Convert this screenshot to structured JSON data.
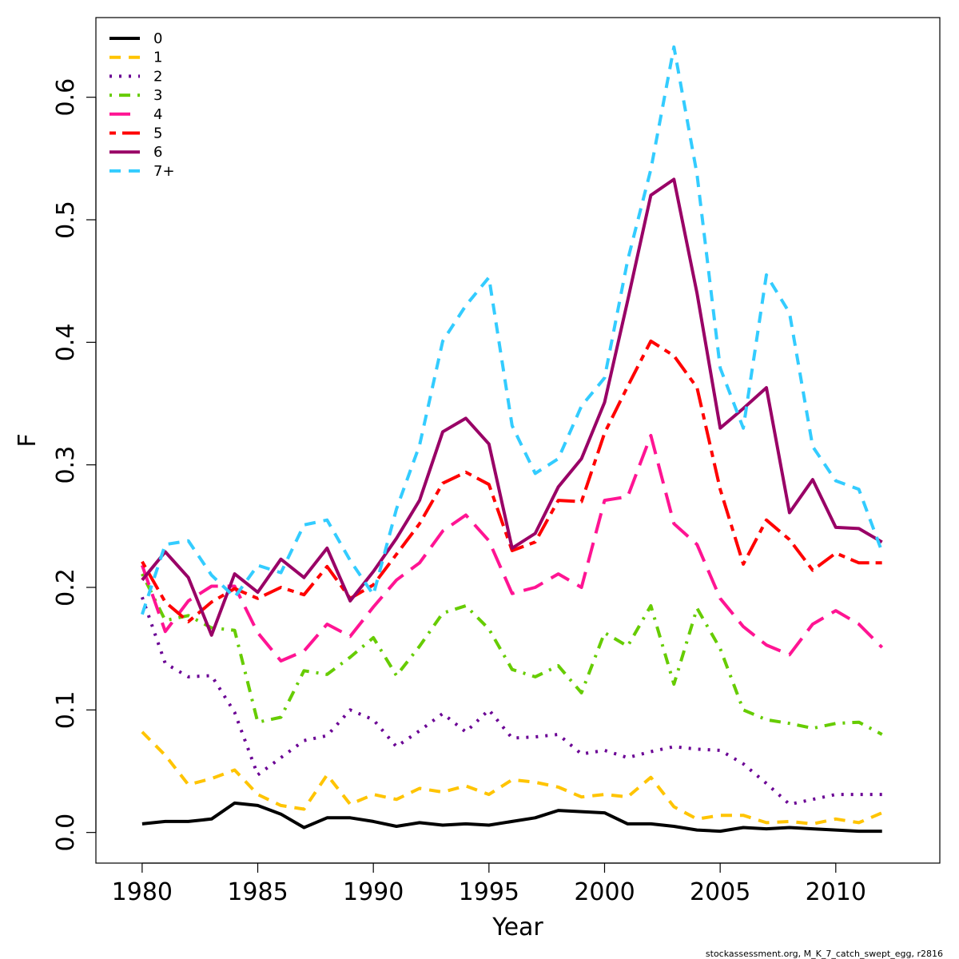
{
  "footnote": "stockassessment.org, M_K_7_catch_swept_egg, r2816",
  "chart_data": {
    "type": "line",
    "title": "",
    "xlabel": "Year",
    "ylabel": "F",
    "xlim": [
      1978,
      2014.5
    ],
    "ylim": [
      -0.025,
      0.665
    ],
    "xticks": [
      1980,
      1985,
      1990,
      1995,
      2000,
      2005,
      2010
    ],
    "yticks": [
      0.0,
      0.1,
      0.2,
      0.3,
      0.4,
      0.5,
      0.6
    ],
    "ytick_labels": [
      "0.0",
      "0.1",
      "0.2",
      "0.3",
      "0.4",
      "0.5",
      "0.6"
    ],
    "legend_position": "top-left",
    "grid": false,
    "x": [
      1980,
      1981,
      1982,
      1983,
      1984,
      1985,
      1986,
      1987,
      1988,
      1989,
      1990,
      1991,
      1992,
      1993,
      1994,
      1995,
      1996,
      1997,
      1998,
      1999,
      2000,
      2001,
      2002,
      2003,
      2004,
      2005,
      2006,
      2007,
      2008,
      2009,
      2010,
      2011,
      2012
    ],
    "series": [
      {
        "name": "0",
        "color": "#000000",
        "dash": "solid",
        "values": [
          0.007,
          0.009,
          0.009,
          0.011,
          0.024,
          0.022,
          0.015,
          0.004,
          0.012,
          0.012,
          0.009,
          0.005,
          0.008,
          0.006,
          0.007,
          0.006,
          0.009,
          0.012,
          0.018,
          0.017,
          0.016,
          0.007,
          0.007,
          0.005,
          0.002,
          0.001,
          0.004,
          0.003,
          0.004,
          0.003,
          0.002,
          0.001,
          0.001
        ]
      },
      {
        "name": "1",
        "color": "#ffc400",
        "dash": "dashed",
        "values": [
          0.082,
          0.063,
          0.039,
          0.044,
          0.051,
          0.031,
          0.022,
          0.019,
          0.047,
          0.023,
          0.031,
          0.027,
          0.036,
          0.033,
          0.038,
          0.031,
          0.043,
          0.041,
          0.037,
          0.029,
          0.031,
          0.029,
          0.045,
          0.021,
          0.011,
          0.014,
          0.014,
          0.008,
          0.009,
          0.007,
          0.011,
          0.008,
          0.016
        ]
      },
      {
        "name": "2",
        "color": "#6a0094",
        "dash": "dotted",
        "values": [
          0.192,
          0.138,
          0.127,
          0.128,
          0.098,
          0.047,
          0.061,
          0.075,
          0.079,
          0.1,
          0.092,
          0.07,
          0.083,
          0.097,
          0.082,
          0.1,
          0.077,
          0.078,
          0.08,
          0.064,
          0.067,
          0.061,
          0.066,
          0.07,
          0.068,
          0.067,
          0.056,
          0.04,
          0.023,
          0.027,
          0.031,
          0.031,
          0.031
        ]
      },
      {
        "name": "3",
        "color": "#66cc00",
        "dash": "dotdash",
        "values": [
          0.211,
          0.173,
          0.177,
          0.167,
          0.165,
          0.09,
          0.094,
          0.132,
          0.129,
          0.143,
          0.159,
          0.128,
          0.152,
          0.179,
          0.185,
          0.166,
          0.133,
          0.127,
          0.136,
          0.114,
          0.163,
          0.152,
          0.185,
          0.121,
          0.183,
          0.15,
          0.1,
          0.092,
          0.089,
          0.085,
          0.089,
          0.09,
          0.08
        ]
      },
      {
        "name": "4",
        "color": "#ff1493",
        "dash": "longdash",
        "values": [
          0.218,
          0.164,
          0.189,
          0.201,
          0.201,
          0.163,
          0.14,
          0.148,
          0.17,
          0.16,
          0.184,
          0.206,
          0.22,
          0.246,
          0.259,
          0.238,
          0.195,
          0.2,
          0.211,
          0.2,
          0.271,
          0.274,
          0.324,
          0.252,
          0.235,
          0.191,
          0.168,
          0.153,
          0.145,
          0.17,
          0.181,
          0.17,
          0.151
        ]
      },
      {
        "name": "5",
        "color": "#ff0000",
        "dash": "twodash",
        "values": [
          0.221,
          0.188,
          0.172,
          0.188,
          0.199,
          0.191,
          0.2,
          0.194,
          0.217,
          0.191,
          0.202,
          0.227,
          0.252,
          0.285,
          0.294,
          0.284,
          0.23,
          0.237,
          0.271,
          0.27,
          0.326,
          0.364,
          0.401,
          0.389,
          0.363,
          0.28,
          0.219,
          0.255,
          0.239,
          0.214,
          0.228,
          0.22,
          0.22
        ]
      },
      {
        "name": "6",
        "color": "#990066",
        "dash": "solid",
        "values": [
          0.206,
          0.229,
          0.208,
          0.161,
          0.211,
          0.196,
          0.223,
          0.208,
          0.232,
          0.189,
          0.213,
          0.24,
          0.271,
          0.327,
          0.338,
          0.317,
          0.232,
          0.244,
          0.282,
          0.305,
          0.351,
          0.434,
          0.52,
          0.533,
          0.44,
          0.33,
          0.346,
          0.363,
          0.261,
          0.288,
          0.249,
          0.248,
          0.237
        ]
      },
      {
        "name": "7+",
        "color": "#33ccff",
        "dash": "dashed",
        "values": [
          0.178,
          0.235,
          0.238,
          0.21,
          0.192,
          0.218,
          0.212,
          0.251,
          0.255,
          0.222,
          0.194,
          0.264,
          0.316,
          0.401,
          0.43,
          0.453,
          0.332,
          0.293,
          0.305,
          0.348,
          0.371,
          0.467,
          0.541,
          0.641,
          0.537,
          0.379,
          0.33,
          0.455,
          0.424,
          0.315,
          0.287,
          0.28,
          0.229
        ]
      }
    ]
  }
}
